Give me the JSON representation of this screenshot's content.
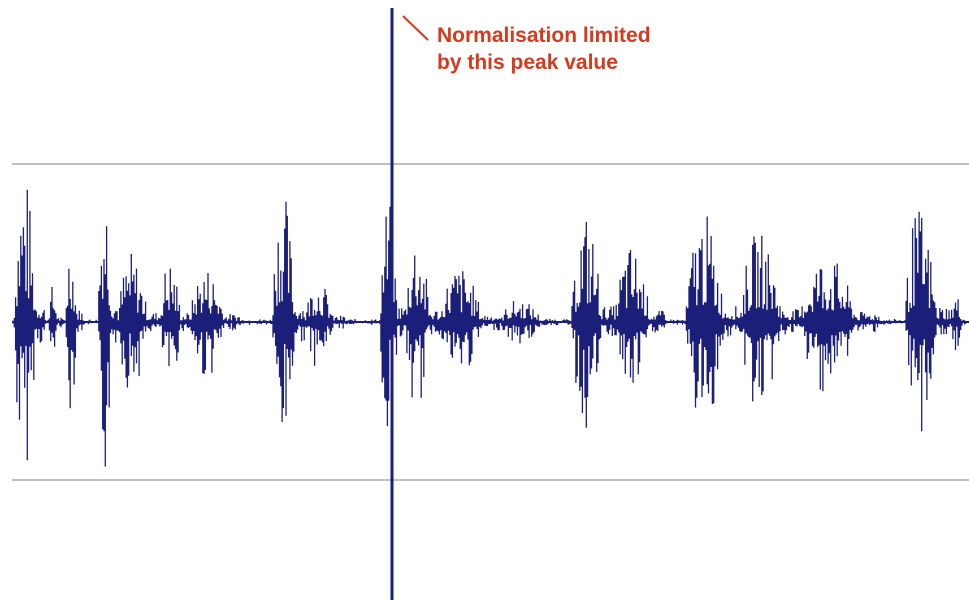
{
  "annotation": {
    "line1": "Normalisation limited",
    "line2": "by this peak value",
    "color": "#d63a1e"
  },
  "waveform": {
    "color": "#1b1f7a",
    "guide_color": "#aaaaaa"
  }
}
